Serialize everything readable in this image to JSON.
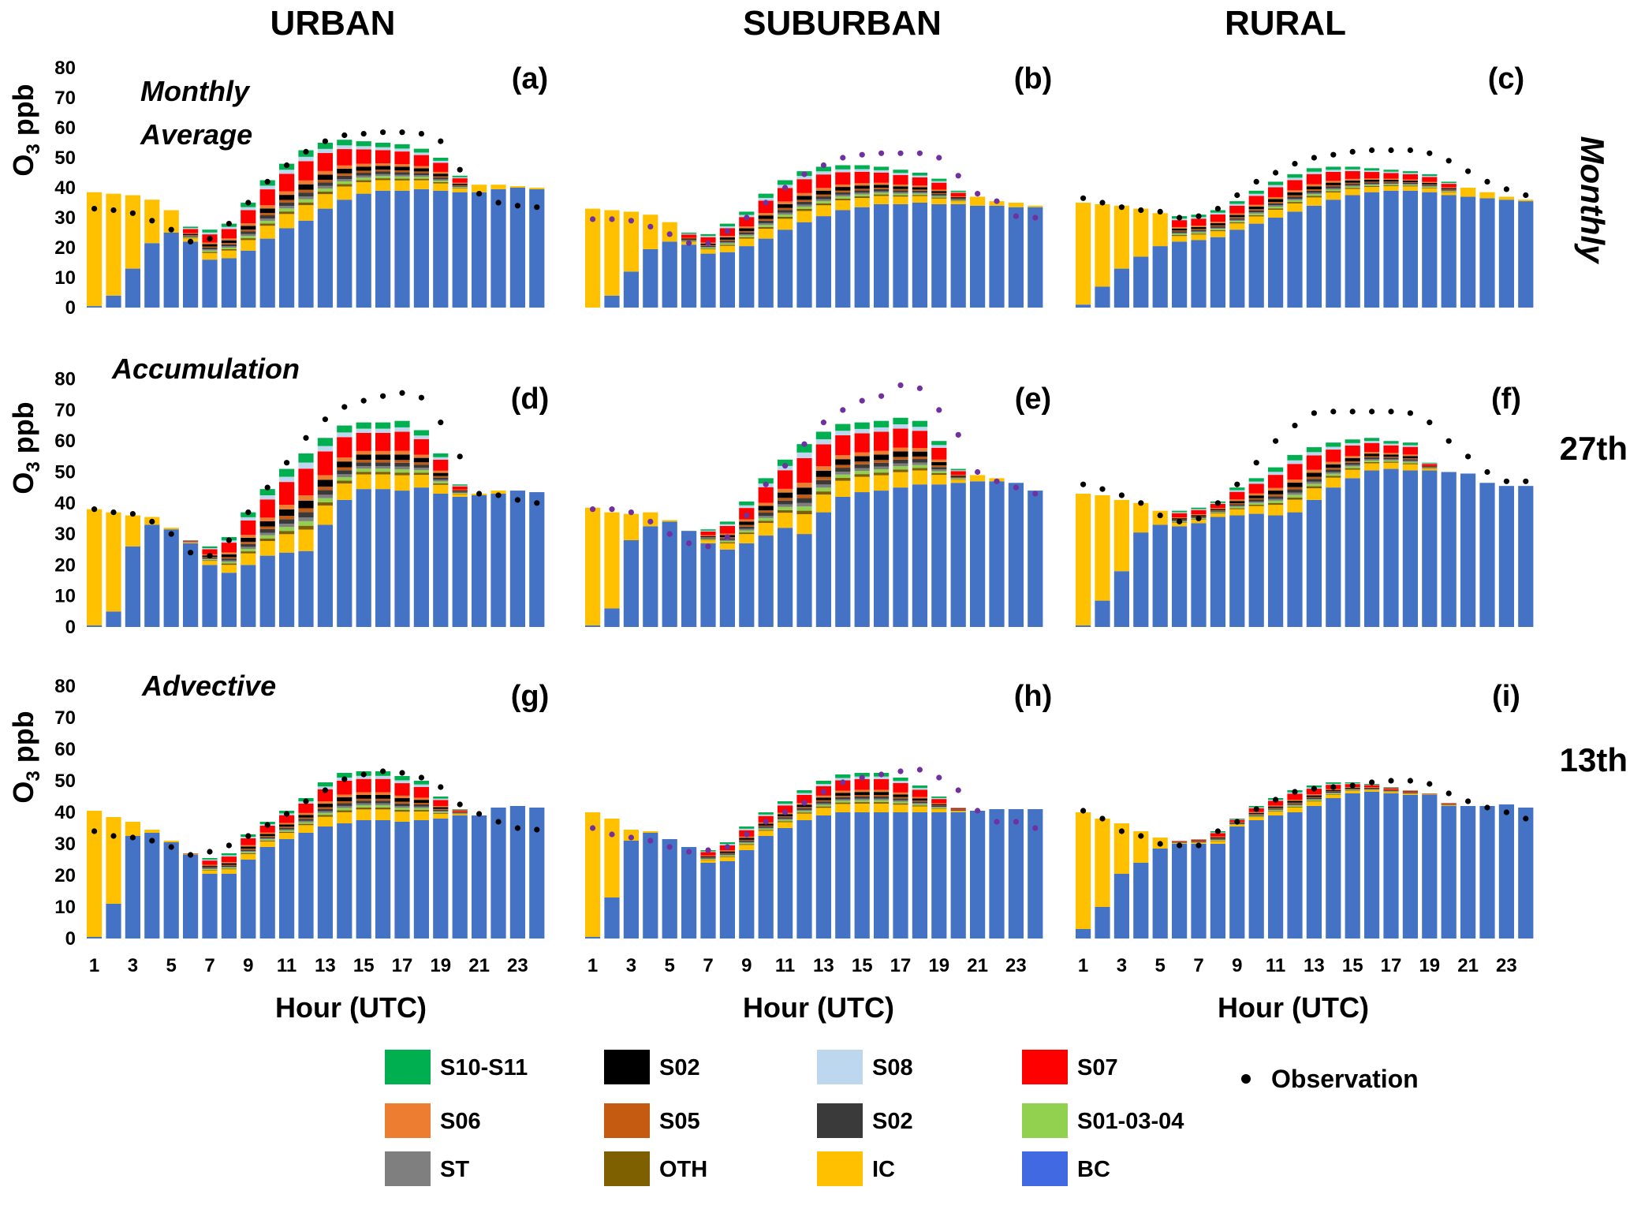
{
  "columns": [
    "URBAN",
    "SUBURBAN",
    "RURAL"
  ],
  "rows": [
    {
      "label": "Monthly",
      "italic": true,
      "vertical": true
    },
    {
      "label": "27th",
      "italic": false,
      "vertical": false
    },
    {
      "label": "13th",
      "italic": false,
      "vertical": false
    }
  ],
  "row_annotations": [
    [
      "Monthly",
      "Average"
    ],
    [
      "Accumulation"
    ],
    [
      "Advective"
    ]
  ],
  "ylabel_main": "O",
  "ylabel_sub": "3",
  "ylabel_rest": " ppb",
  "xlabel": "Hour (UTC)",
  "y_ticks": [
    0,
    10,
    20,
    30,
    40,
    50,
    60,
    70,
    80
  ],
  "x_ticks": [
    1,
    3,
    5,
    7,
    9,
    11,
    13,
    15,
    17,
    19,
    21,
    23
  ],
  "legend": {
    "observation_label": "Observation",
    "entries": [
      {
        "label": "S10-S11",
        "color": "#00b050"
      },
      {
        "label": "S02",
        "color": "#000000"
      },
      {
        "label": "S08",
        "color": "#bdd7ee"
      },
      {
        "label": "S07",
        "color": "#ff0000"
      },
      {
        "label": "S06",
        "color": "#ed7d31"
      },
      {
        "label": "S05",
        "color": "#c55a11"
      },
      {
        "label": "S02",
        "color": "#3a3a3a"
      },
      {
        "label": "S01-03-04",
        "color": "#92d050"
      },
      {
        "label": "ST",
        "color": "#7f7f7f"
      },
      {
        "label": "OTH",
        "color": "#7f6000"
      },
      {
        "label": "IC",
        "color": "#ffc000"
      },
      {
        "label": "BC",
        "color": "#4169e1"
      }
    ]
  },
  "colors": {
    "BC": "#4472c4",
    "IC": "#ffc000",
    "OTH": "#7f6000",
    "ST": "#7f7f7f",
    "S01-03-04": "#92d050",
    "S02_dark": "#3a3a3a",
    "S02": "#000000",
    "S05": "#c55a11",
    "S06": "#ed7d31",
    "S07": "#ff0000",
    "S08": "#bdd7ee",
    "S10-S11": "#00b050",
    "obs_black": "#000000",
    "obs_purple": "#7030a0"
  },
  "chart_data": [
    {
      "type": "bar",
      "panel": "(a)",
      "ylim": [
        0,
        80
      ],
      "x": [
        1,
        2,
        3,
        4,
        5,
        6,
        7,
        8,
        9,
        10,
        11,
        12,
        13,
        14,
        15,
        16,
        17,
        18,
        19,
        20,
        21,
        22,
        23,
        24
      ],
      "bc": [
        0.5,
        4,
        13,
        21.5,
        25,
        22,
        16,
        16.5,
        19,
        23,
        26.5,
        29,
        33,
        36,
        38,
        39,
        39,
        39.5,
        39,
        38.5,
        38.5,
        39.5,
        40,
        39.5
      ],
      "totals": [
        38.5,
        38,
        37.5,
        36,
        32.5,
        27,
        26,
        28,
        35,
        42.5,
        48,
        52.5,
        55,
        56,
        55.5,
        55,
        54.5,
        53,
        50,
        44,
        41,
        41,
        40.5,
        40
      ],
      "obs": [
        33,
        32.5,
        31.5,
        29,
        26,
        22,
        23,
        28,
        35,
        42,
        47.5,
        52,
        55.5,
        57.5,
        58,
        58.5,
        58.5,
        58,
        55.5,
        46,
        38,
        35,
        34,
        33.5
      ],
      "obs_color": "obs_black"
    },
    {
      "type": "bar",
      "panel": "(b)",
      "ylim": [
        0,
        80
      ],
      "x": [
        1,
        2,
        3,
        4,
        5,
        6,
        7,
        8,
        9,
        10,
        11,
        12,
        13,
        14,
        15,
        16,
        17,
        18,
        19,
        20,
        21,
        22,
        23,
        24
      ],
      "bc": [
        0,
        4,
        12,
        19.5,
        22,
        21,
        18,
        18.5,
        20.5,
        23,
        26,
        28.5,
        30.5,
        32.5,
        33.5,
        34.5,
        34.5,
        35,
        34.5,
        34.5,
        34,
        34,
        33.5,
        33.5
      ],
      "totals": [
        33,
        32.5,
        32,
        31,
        28.5,
        25,
        24.5,
        28,
        32,
        38,
        42.5,
        45.5,
        47,
        47.5,
        47.5,
        47,
        46,
        45,
        43,
        39,
        37,
        35.5,
        35,
        34
      ],
      "obs": [
        29.5,
        29.5,
        29,
        27,
        24.5,
        21.5,
        21.5,
        25.5,
        30,
        35,
        40,
        44.5,
        47.5,
        50,
        51,
        51.5,
        51.5,
        51.5,
        50,
        44,
        38,
        35.5,
        30.5,
        30
      ],
      "obs_color": "obs_purple"
    },
    {
      "type": "bar",
      "panel": "(c)",
      "ylim": [
        0,
        80
      ],
      "x": [
        1,
        2,
        3,
        4,
        5,
        6,
        7,
        8,
        9,
        10,
        11,
        12,
        13,
        14,
        15,
        16,
        17,
        18,
        19,
        20,
        21,
        22,
        23,
        24
      ],
      "bc": [
        1,
        7,
        13,
        17,
        20.5,
        22,
        22.5,
        23.5,
        26,
        28,
        30,
        32,
        34,
        36,
        37.5,
        38.5,
        39,
        39,
        38.5,
        37.5,
        37,
        36.5,
        36,
        35.5
      ],
      "totals": [
        35,
        34.5,
        34,
        33,
        31.5,
        30.5,
        31,
        32.5,
        35.5,
        39,
        42,
        44.5,
        46.5,
        47,
        47,
        46.5,
        46,
        45.5,
        44.5,
        42,
        40,
        38.5,
        37,
        36
      ],
      "obs": [
        36.5,
        35,
        33.5,
        32.5,
        32,
        30,
        30.5,
        33,
        37.5,
        42,
        45,
        48,
        50,
        51,
        52,
        52.5,
        52.5,
        52.5,
        51.5,
        49,
        45.5,
        42,
        39.5,
        37.5
      ],
      "obs_color": "obs_black"
    },
    {
      "type": "bar",
      "panel": "(d)",
      "ylim": [
        0,
        80
      ],
      "x": [
        1,
        2,
        3,
        4,
        5,
        6,
        7,
        8,
        9,
        10,
        11,
        12,
        13,
        14,
        15,
        16,
        17,
        18,
        19,
        20,
        21,
        22,
        23,
        24
      ],
      "bc": [
        0.5,
        5,
        26,
        33,
        31.5,
        27,
        20,
        17.5,
        20,
        23,
        24,
        24.5,
        33,
        41,
        44.5,
        44.5,
        44,
        45,
        43,
        42,
        42.5,
        43,
        44,
        43.5
      ],
      "totals": [
        38,
        37,
        36,
        35.5,
        32,
        28,
        26,
        29,
        37,
        44.5,
        51,
        56,
        61,
        65,
        66,
        66,
        66.5,
        63.5,
        56,
        46,
        43,
        44,
        44,
        43.5
      ],
      "obs": [
        38,
        37,
        36.5,
        34,
        30,
        24,
        23,
        28,
        37,
        45,
        53,
        61,
        67,
        71,
        73,
        74.5,
        75.5,
        74,
        66,
        55,
        43,
        42.5,
        41,
        40
      ],
      "obs_color": "obs_black"
    },
    {
      "type": "bar",
      "panel": "(e)",
      "ylim": [
        0,
        80
      ],
      "x": [
        1,
        2,
        3,
        4,
        5,
        6,
        7,
        8,
        9,
        10,
        11,
        12,
        13,
        14,
        15,
        16,
        17,
        18,
        19,
        20,
        21,
        22,
        23,
        24
      ],
      "bc": [
        0.5,
        6,
        28,
        32.5,
        34,
        31,
        27,
        25,
        27,
        29.5,
        32,
        30,
        37,
        42,
        43.5,
        44,
        45,
        46,
        46,
        46.5,
        47,
        47,
        46.5,
        44
      ],
      "totals": [
        38.5,
        37,
        36.5,
        37,
        34.5,
        31,
        31.5,
        34,
        40.5,
        48,
        54,
        59,
        63,
        65.5,
        66,
        66.5,
        67.5,
        66.5,
        60,
        51,
        49,
        48,
        46.5,
        44
      ],
      "obs": [
        38,
        38,
        37,
        34,
        30,
        27,
        26,
        29,
        36,
        46,
        52,
        59,
        66,
        70,
        73,
        74.5,
        78,
        77,
        70,
        62,
        50,
        47,
        45,
        43
      ],
      "obs_color": "obs_purple"
    },
    {
      "type": "bar",
      "panel": "(f)",
      "ylim": [
        0,
        80
      ],
      "x": [
        1,
        2,
        3,
        4,
        5,
        6,
        7,
        8,
        9,
        10,
        11,
        12,
        13,
        14,
        15,
        16,
        17,
        18,
        19,
        20,
        21,
        22,
        23,
        24
      ],
      "bc": [
        0.5,
        8.5,
        18,
        30.5,
        33,
        32.5,
        33.5,
        35.5,
        36,
        36.5,
        36,
        37,
        41,
        45,
        48,
        50.5,
        51,
        50.5,
        50.5,
        50,
        49.5,
        46.5,
        45.5,
        45.5
      ],
      "totals": [
        43,
        42.5,
        41,
        40,
        37.5,
        37.5,
        38.5,
        40.5,
        45,
        48,
        51.5,
        55.5,
        58,
        59.5,
        60.5,
        61,
        60,
        59.5,
        53,
        50,
        49.5,
        46.5,
        45.5,
        45.5
      ],
      "obs": [
        46,
        44.5,
        42.5,
        40,
        36,
        34,
        35,
        40,
        46,
        53,
        60,
        65,
        69,
        69.5,
        69.5,
        69.5,
        69.5,
        69,
        66,
        60,
        55,
        50,
        47,
        47
      ],
      "obs_color": "obs_black"
    },
    {
      "type": "bar",
      "panel": "(g)",
      "ylim": [
        0,
        80
      ],
      "x": [
        1,
        2,
        3,
        4,
        5,
        6,
        7,
        8,
        9,
        10,
        11,
        12,
        13,
        14,
        15,
        16,
        17,
        18,
        19,
        20,
        21,
        22,
        23,
        24
      ],
      "bc": [
        0.5,
        11,
        32.5,
        33.5,
        30.5,
        26.5,
        20.5,
        20.5,
        25,
        29,
        31.5,
        33.5,
        35.5,
        36.5,
        37.5,
        37.5,
        37,
        37.5,
        38,
        39,
        39,
        41.5,
        42,
        41.5
      ],
      "totals": [
        40.5,
        38.5,
        37,
        34.5,
        31,
        27,
        25.5,
        27,
        33,
        37,
        40.5,
        44.5,
        49.5,
        52.5,
        53,
        53,
        51.5,
        50,
        45,
        41,
        39,
        41.5,
        42,
        41.5
      ],
      "obs": [
        34,
        32.5,
        32,
        31,
        29,
        26.5,
        27.5,
        29.5,
        32.5,
        36,
        39.5,
        43.5,
        47,
        50.5,
        52,
        53,
        52.5,
        51,
        48,
        42.5,
        39.5,
        37,
        35,
        34.5
      ],
      "obs_color": "obs_black"
    },
    {
      "type": "bar",
      "panel": "(h)",
      "ylim": [
        0,
        80
      ],
      "x": [
        1,
        2,
        3,
        4,
        5,
        6,
        7,
        8,
        9,
        10,
        11,
        12,
        13,
        14,
        15,
        16,
        17,
        18,
        19,
        20,
        21,
        22,
        23,
        24
      ],
      "bc": [
        0.5,
        13,
        31,
        33.5,
        31.5,
        29,
        24,
        24.5,
        28,
        32.5,
        35,
        37.5,
        39,
        40,
        40,
        40,
        40,
        40,
        40,
        40,
        40.5,
        41,
        41,
        41
      ],
      "totals": [
        40,
        38,
        34.5,
        34,
        31.5,
        29,
        28,
        30.5,
        35.5,
        40,
        43.5,
        47,
        50,
        52,
        52.5,
        52.5,
        51,
        48.5,
        45,
        41.5,
        40.5,
        41,
        41,
        41
      ],
      "obs": [
        35,
        33,
        32,
        31,
        29,
        27.5,
        28,
        29,
        33,
        37,
        40,
        43,
        46.5,
        49.5,
        51,
        52,
        53,
        53.5,
        51,
        47,
        40.5,
        37,
        37,
        35
      ],
      "obs_color": "obs_purple"
    },
    {
      "type": "bar",
      "panel": "(i)",
      "ylim": [
        0,
        80
      ],
      "x": [
        1,
        2,
        3,
        4,
        5,
        6,
        7,
        8,
        9,
        10,
        11,
        12,
        13,
        14,
        15,
        16,
        17,
        18,
        19,
        20,
        21,
        22,
        23,
        24
      ],
      "bc": [
        3,
        10,
        20.5,
        24,
        28.5,
        30,
        30,
        30,
        35.5,
        37.5,
        39,
        40,
        42,
        44.5,
        46,
        46.5,
        46,
        45.5,
        45.5,
        42,
        42,
        42,
        42.5,
        41.5
      ],
      "totals": [
        40,
        38,
        36.5,
        34,
        32,
        31,
        31.5,
        34,
        38,
        42,
        44.5,
        47,
        48.5,
        49.5,
        49.5,
        49,
        48,
        47,
        46,
        43,
        42,
        42,
        42.5,
        41.5
      ],
      "obs": [
        40.5,
        38,
        34,
        32.5,
        30,
        29.5,
        29.5,
        34,
        37,
        41,
        44,
        46.5,
        47.5,
        48,
        48.5,
        49.5,
        50,
        50,
        49,
        46,
        43.5,
        41.5,
        40,
        38
      ],
      "obs_color": "obs_black"
    }
  ]
}
